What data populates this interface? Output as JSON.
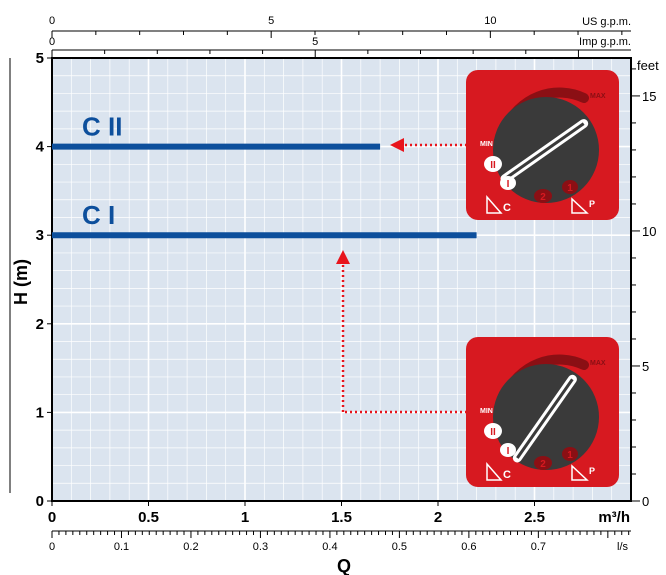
{
  "chart_data": {
    "type": "line",
    "xlabel": "Q",
    "ylabel": "H (m)",
    "x_unit": "m³/h",
    "xlim": [
      0,
      3
    ],
    "ylim": [
      0,
      5
    ],
    "x_ticks": [
      "0",
      "0.5",
      "1",
      "1.5",
      "2",
      "2.5"
    ],
    "y_ticks": [
      "0",
      "1",
      "2",
      "3",
      "4",
      "5"
    ],
    "grid": true,
    "series": [
      {
        "name": "C II",
        "x": [
          0,
          1.7
        ],
        "y": [
          4,
          4
        ],
        "color": "#0d4f9c"
      },
      {
        "name": "C I",
        "x": [
          0,
          2.2
        ],
        "y": [
          3,
          3
        ],
        "color": "#0d4f9c"
      }
    ],
    "secondary_axes": {
      "feet": {
        "label": "feet",
        "ticks": [
          "0",
          "5",
          "10",
          "15"
        ],
        "values": [
          0,
          5,
          10,
          15
        ]
      },
      "us_gpm": {
        "label": "US g.p.m.",
        "ticks": [
          "0",
          "5",
          "10"
        ],
        "values": [
          0,
          5,
          10
        ]
      },
      "imp_gpm": {
        "label": "Imp g.p.m.",
        "ticks": [
          "0",
          "5"
        ],
        "values": [
          0,
          5
        ]
      },
      "ls": {
        "label": "l/s",
        "ticks": [
          "0",
          "0.1",
          "0.2",
          "0.3",
          "0.4",
          "0.5",
          "0.6",
          "0.7"
        ],
        "values": [
          0,
          0.1,
          0.2,
          0.3,
          0.4,
          0.5,
          0.6,
          0.7
        ]
      }
    },
    "dials": [
      {
        "min_label": "MIN",
        "max_label": "MAX",
        "constant_label": "C",
        "proportional_label": "P",
        "position_labels": [
          "II",
          "I",
          "2",
          "1"
        ],
        "points_to": "C II"
      },
      {
        "min_label": "MIN",
        "max_label": "MAX",
        "constant_label": "C",
        "proportional_label": "P",
        "position_labels": [
          "II",
          "I",
          "2",
          "1"
        ],
        "points_to": "C I"
      }
    ]
  },
  "colors": {
    "plot_bg": "#dbe4ef",
    "grid": "#ffffff",
    "series": "#0d4f9c",
    "dial_red": "#d71920",
    "dial_dark": "#3a3a3a",
    "arrow": "#e8141c"
  }
}
